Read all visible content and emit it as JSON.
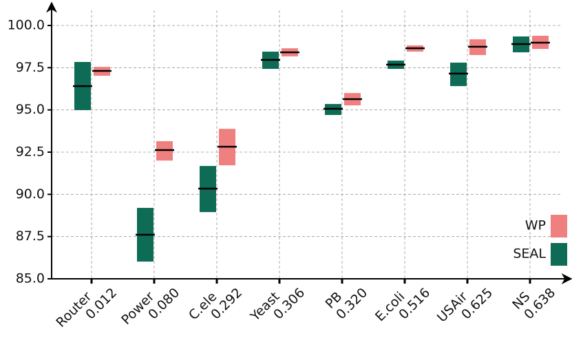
{
  "chart_data": {
    "type": "range-box",
    "categories": [
      "Router",
      "Power",
      "C.ele",
      "Yeast",
      "PB",
      "E.coli",
      "USAir",
      "NS"
    ],
    "category_sublabels": [
      "0.012",
      "0.080",
      "0.292",
      "0.306",
      "0.320",
      "0.516",
      "0.625",
      "0.638"
    ],
    "ylim": [
      85,
      100.5
    ],
    "yticks": [
      {
        "value": 85,
        "label": "85.0"
      },
      {
        "value": 87.5,
        "label": "87.5"
      },
      {
        "value": 90,
        "label": "90.0"
      },
      {
        "value": 92.5,
        "label": "92.5"
      },
      {
        "value": 95,
        "label": "95.0"
      },
      {
        "value": 97.5,
        "label": "97.5"
      },
      {
        "value": 100,
        "label": "100.0"
      }
    ],
    "grid": true,
    "legend": "lower right",
    "series": [
      {
        "name": "SEAL",
        "color": "#0e6b55",
        "low": [
          94.99,
          86.02,
          88.95,
          97.43,
          94.7,
          97.43,
          96.41,
          98.41
        ],
        "high": [
          97.84,
          89.2,
          91.68,
          98.45,
          95.35,
          97.92,
          97.8,
          99.35
        ],
        "median": [
          96.41,
          87.61,
          90.34,
          97.96,
          95.07,
          97.68,
          97.15,
          98.9
        ]
      },
      {
        "name": "WP",
        "color": "#f08080",
        "low": [
          97.02,
          92.0,
          91.72,
          98.17,
          95.27,
          98.45,
          98.25,
          98.61
        ],
        "high": [
          97.55,
          93.15,
          93.88,
          98.65,
          96.0,
          98.82,
          99.18,
          99.39
        ],
        "median": [
          97.31,
          92.62,
          92.82,
          98.41,
          95.64,
          98.65,
          98.74,
          98.98
        ]
      }
    ]
  }
}
